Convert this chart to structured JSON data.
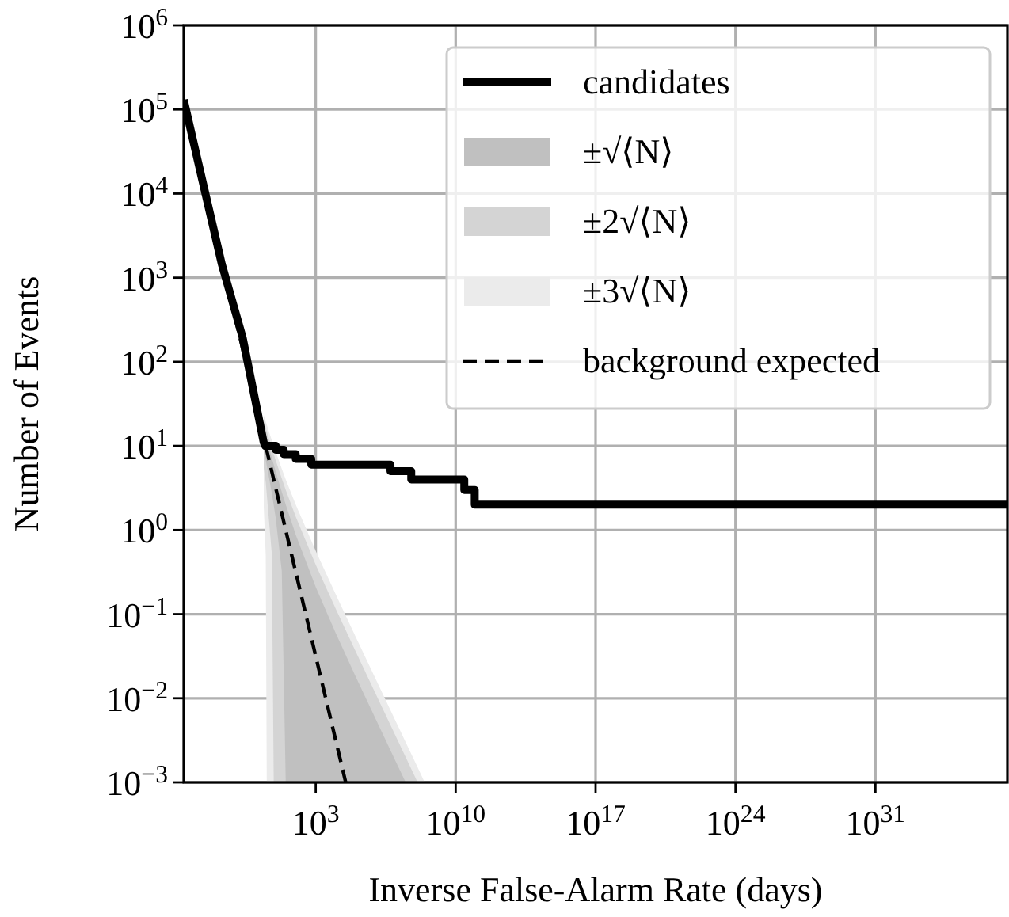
{
  "chart_data": {
    "type": "line",
    "xlabel": "Inverse False-Alarm Rate (days)",
    "ylabel": "Number of Events",
    "log": "xy",
    "grid": true,
    "legend": "top right",
    "xlim": [
      0.00025,
      4e+37
    ],
    "ylim": [
      0.001,
      1000000
    ],
    "xticks": [
      {
        "value": 1000.0,
        "label": "10$^{3}$"
      },
      {
        "value": 10000000000.0,
        "label": "10$^{10}$"
      },
      {
        "value": 1e+17,
        "label": "10$^{17}$"
      },
      {
        "value": 1e+24,
        "label": "10$^{24}$"
      },
      {
        "value": 1e+31,
        "label": "10$^{31}$"
      }
    ],
    "yticks": [
      {
        "value": 0.001,
        "label": "10$^{−3}$"
      },
      {
        "value": 0.01,
        "label": "10$^{−2}$"
      },
      {
        "value": 0.1,
        "label": "10$^{−1}$"
      },
      {
        "value": 1,
        "label": "10$^{0}$"
      },
      {
        "value": 10,
        "label": "10$^{1}$"
      },
      {
        "value": 100,
        "label": "10$^{2}$"
      },
      {
        "value": 1000,
        "label": "10$^{3}$"
      },
      {
        "value": 10000,
        "label": "10$^{4}$"
      },
      {
        "value": 100000,
        "label": "10$^{5}$"
      },
      {
        "value": 1000000,
        "label": "10$^{6}$"
      }
    ],
    "series": [
      {
        "name": "candidates",
        "color": "#000000",
        "line_style": "solid",
        "x": [
          0.00025,
          0.0018,
          0.02,
          0.22,
          2.5,
          3,
          10,
          10,
          25,
          25,
          100,
          100,
          600,
          600,
          5500000.0,
          5500000.0,
          60000000.0,
          60000000.0,
          27000000000.0,
          27000000000.0,
          90000000000.0,
          90000000000.0,
          4e+37
        ],
        "values": [
          130000,
          17000,
          1450,
          195,
          11,
          10,
          10,
          9,
          9,
          8,
          8,
          7,
          7,
          6,
          6,
          5,
          5,
          4,
          4,
          3,
          3,
          2,
          2
        ]
      },
      {
        "name": "±√⟨N⟩",
        "color": "#c0c0c0",
        "x": [
          2.51,
          3.16,
          6.31,
          10,
          20,
          31.6,
          100,
          1000,
          10000,
          100000,
          1000000,
          10000000,
          31600000
        ],
        "values": [
          null,
          null,
          null,
          null,
          null,
          null,
          null,
          null,
          null,
          null,
          null,
          null,
          null
        ],
        "lower": [
          9,
          6.8,
          2.77,
          1.38,
          0.326,
          0.001,
          0.001,
          0.001,
          0.001,
          0.001,
          0.001,
          0.001,
          0.001
        ],
        "upper": [
          16.1,
          13.2,
          7.25,
          4.94,
          2.84,
          2,
          0.878,
          0.21,
          0.0594,
          0.0181,
          0.00565,
          0.00178,
          0.001
        ]
      },
      {
        "name": "±2√⟨N⟩",
        "color": "#d4d4d4",
        "x": [
          2.51,
          3.16,
          6.31,
          7.94,
          10,
          20,
          31.6,
          100,
          1000,
          10000,
          100000,
          1000000,
          10000000,
          100000000,
          126000000
        ],
        "values": [
          null,
          null,
          null,
          null,
          null,
          null,
          null,
          null,
          null,
          null,
          null,
          null,
          null,
          null,
          null
        ],
        "lower": [
          5.5,
          3.7,
          0.53,
          0.001,
          0.001,
          0.001,
          0.001,
          0.001,
          0.001,
          0.001,
          0.001,
          0.001,
          0.001,
          0.001,
          0.001
        ],
        "upper": [
          19.7,
          16.3,
          9.49,
          7.97,
          6.72,
          4.1,
          3,
          1.44,
          0.387,
          0.116,
          0.0359,
          0.0113,
          0.00356,
          0.00112,
          0.001
        ]
      },
      {
        "name": "±3√⟨N⟩",
        "color": "#ebebeb",
        "x": [
          2.51,
          3.16,
          3.55,
          6.31,
          10,
          20,
          31.6,
          100,
          1000,
          10000,
          100000,
          1000000,
          10000000,
          100000000,
          282000000
        ],
        "values": [
          null,
          null,
          null,
          null,
          null,
          null,
          null,
          null,
          null,
          null,
          null,
          null,
          null,
          null,
          null
        ],
        "lower": [
          1.9,
          0.5,
          0.001,
          0.001,
          0.001,
          0.001,
          0.001,
          0.001,
          0.001,
          0.001,
          0.001,
          0.001,
          0.001,
          0.001,
          0.001
        ],
        "upper": [
          23.2,
          19.5,
          17.9,
          11.7,
          8.5,
          5.36,
          4,
          2,
          0.565,
          0.172,
          0.0537,
          0.0169,
          0.00534,
          0.00169,
          0.001
        ]
      },
      {
        "name": "background expected",
        "color": "#000000",
        "line_style": "dashed",
        "x": [
          0.00025,
          31600
        ],
        "values": [
          126000,
          0.001
        ]
      }
    ]
  }
}
